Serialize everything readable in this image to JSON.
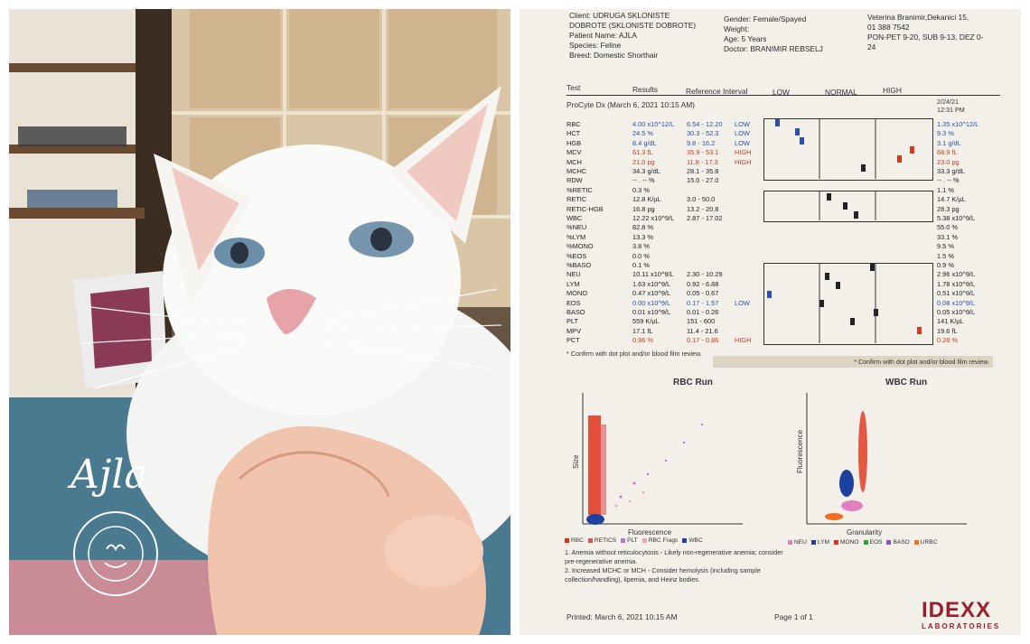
{
  "photo": {
    "caption": "Ajla",
    "seal_text": "UDRUGA \"SKLONIŠTE DOBROTE\" ZA ŽIVOTINJE"
  },
  "report": {
    "client": "Client: UDRUGA SKLONISTE",
    "client2": "DOBROTE (SKLONISTE DOBROTE)",
    "patient": "Patient Name: AJLA",
    "species": "Species: Feline",
    "breed": "Breed: Domestic Shorthair",
    "gender": "Gender: Female/Spayed",
    "weight": "Weight:",
    "age": "Age: 5 Years",
    "doctor": "Doctor: BRANIMIR REBSELJ",
    "clinic1": "Veterina Branimir,Dekanici 15,",
    "clinic2": "01 388 7542",
    "clinic3": "PON-PET 9-20, SUB 9-13, DEZ 0-",
    "clinic4": "24",
    "col_test": "Test",
    "col_results": "Results",
    "col_ref": "Reference Interval",
    "col_low": "LOW",
    "col_normal": "NORMAL",
    "col_high": "HIGH",
    "procyte": "ProCyte Dx (March 6, 2021 10:15 AM)",
    "prev_date": "2/24/21",
    "prev_time": "12:31 PM",
    "rows": [
      {
        "test": "RBC",
        "result": "4.00 x10^12/L",
        "ref": "6.54 - 12.20",
        "flag": "LOW",
        "prev": "1.35 x10^12/L",
        "color": "blue"
      },
      {
        "test": "HCT",
        "result": "24.5 %",
        "ref": "30.3 - 52.3",
        "flag": "LOW",
        "prev": "9.3 %",
        "color": "blue"
      },
      {
        "test": "HGB",
        "result": "8.4 g/dL",
        "ref": "9.8 - 16.2",
        "flag": "LOW",
        "prev": "3.1 g/dL",
        "color": "blue"
      },
      {
        "test": "MCV",
        "result": "61.3 fL",
        "ref": "35.9 - 53.1",
        "flag": "HIGH",
        "prev": "68.9 fL",
        "color": "red"
      },
      {
        "test": "MCH",
        "result": "21.0 pg",
        "ref": "11.8 - 17.3",
        "flag": "HIGH",
        "prev": "23.0 pg",
        "color": "red"
      },
      {
        "test": "MCHC",
        "result": "34.3 g/dL",
        "ref": "28.1 - 35.8",
        "flag": "",
        "prev": "33.3 g/dL",
        "color": ""
      },
      {
        "test": "RDW",
        "result": "-- . -- %",
        "ref": "15.0 - 27.0",
        "flag": "",
        "prev": "-- . -- %",
        "color": ""
      },
      {
        "test": "%RETIC",
        "result": "0.3 %",
        "ref": "",
        "flag": "",
        "prev": "1.1 %",
        "color": ""
      },
      {
        "test": "RETIC",
        "result": "12.8 K/µL",
        "ref": "3.0 - 50.0",
        "flag": "",
        "prev": "14.7 K/µL",
        "color": ""
      },
      {
        "test": "RETIC-HGB",
        "result": "16.8 pg",
        "ref": "13.2 - 20.8",
        "flag": "",
        "prev": "28.3 pg",
        "color": ""
      },
      {
        "test": "WBC",
        "result": "12.22 x10^9/L",
        "ref": "2.87 - 17.02",
        "flag": "",
        "prev": "5.38 x10^9/L",
        "color": ""
      },
      {
        "test": "%NEU",
        "result": "82.8 %",
        "ref": "",
        "flag": "",
        "prev": "55.0 %",
        "color": ""
      },
      {
        "test": "%LYM",
        "result": "13.3 %",
        "ref": "",
        "flag": "",
        "prev": "33.1 %",
        "color": ""
      },
      {
        "test": "%MONO",
        "result": "3.8 %",
        "ref": "",
        "flag": "",
        "prev": "9.5 %",
        "color": ""
      },
      {
        "test": "%EOS",
        "result": "0.0 %",
        "ref": "",
        "flag": "",
        "prev": "1.5 %",
        "color": ""
      },
      {
        "test": "%BASO",
        "result": "0.1 %",
        "ref": "",
        "flag": "",
        "prev": "0.9 %",
        "color": ""
      },
      {
        "test": "NEU",
        "result": "10.11 x10^9/L",
        "ref": "2.30 - 10.29",
        "flag": "",
        "prev": "2.96 x10^9/L",
        "color": ""
      },
      {
        "test": "LYM",
        "result": "1.63 x10^9/L",
        "ref": "0.92 - 6.88",
        "flag": "",
        "prev": "1.78 x10^9/L",
        "color": ""
      },
      {
        "test": "MONO",
        "result": "0.47 x10^9/L",
        "ref": "0.05 - 0.67",
        "flag": "",
        "prev": "0.51 x10^9/L",
        "color": ""
      },
      {
        "test": "EOS",
        "result": "0.00 x10^9/L",
        "ref": "0.17 - 1.57",
        "flag": "LOW",
        "prev": "0.08 x10^9/L",
        "color": "blue"
      },
      {
        "test": "BASO",
        "result": "0.01 x10^9/L",
        "ref": "0.01 - 0.26",
        "flag": "",
        "prev": "0.05 x10^9/L",
        "color": ""
      },
      {
        "test": "PLT",
        "result": "559 K/µL",
        "ref": "151 - 600",
        "flag": "",
        "prev": "141 K/µL",
        "color": ""
      },
      {
        "test": "MPV",
        "result": "17.1 fL",
        "ref": "11.4 - 21.6",
        "flag": "",
        "prev": "19.6 fL",
        "color": ""
      },
      {
        "test": "PCT",
        "result": "0.96 %",
        "ref": "0.17 - 0.86",
        "flag": "HIGH",
        "prev": "0.28 %",
        "color": "red"
      }
    ],
    "confirm1": "* Confirm with dot plot and/or blood film review.",
    "confirm2": "* Confirm with dot plot and/or blood film review.",
    "rbc_run": "RBC Run",
    "wbc_run": "WBC Run",
    "rbc_y": "Size",
    "rbc_x": "Fluorescence",
    "wbc_y": "Fluorescence",
    "wbc_x": "Granularity",
    "rbc_legend": [
      {
        "label": "RBC",
        "color": "#e0321a"
      },
      {
        "label": "RETICS",
        "color": "#e05050"
      },
      {
        "label": "PLT",
        "color": "#b07ad0"
      },
      {
        "label": "RBC Frags",
        "color": "#f0a0b0"
      },
      {
        "label": "WBC",
        "color": "#2040a0"
      }
    ],
    "wbc_legend": [
      {
        "label": "NEU",
        "color": "#e080c0"
      },
      {
        "label": "LYM",
        "color": "#2040a0"
      },
      {
        "label": "MONO",
        "color": "#e0321a"
      },
      {
        "label": "EOS",
        "color": "#30a030"
      },
      {
        "label": "BASO",
        "color": "#9050c0"
      },
      {
        "label": "URBC",
        "color": "#f07020"
      }
    ],
    "note1": "1. Anemia without reticulocytosis - Likely non-regenerative anemia; consider",
    "note1b": "pre-regenerative anemia.",
    "note2": "2. Increased MCHC or MCH - Consider hemolysis (including sample",
    "note2b": "collection/handling), lipemia, and Heinz bodies.",
    "printed": "Printed: March 6, 2021 10:15 AM",
    "page": "Page 1 of 1",
    "logo": "IDEXX",
    "logo_sub": "LABORATORIES"
  }
}
